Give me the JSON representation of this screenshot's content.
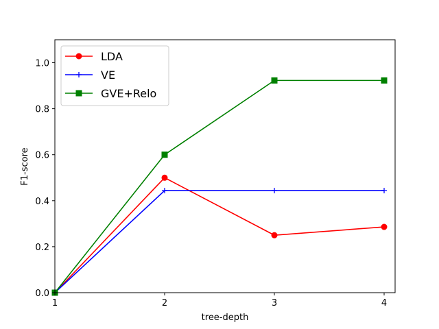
{
  "chart_data": {
    "type": "line",
    "title": "",
    "xlabel": "tree-depth",
    "ylabel": "F1-score",
    "x": [
      1,
      2,
      3,
      4
    ],
    "xticks": [
      1,
      2,
      3,
      4
    ],
    "xlim": [
      1,
      4.1
    ],
    "yticks": [
      0.0,
      0.2,
      0.4,
      0.6,
      0.8,
      1.0
    ],
    "ytick_labels": [
      "0.0",
      "0.2",
      "0.4",
      "0.6",
      "0.8",
      "1.0"
    ],
    "ylim": [
      0,
      1.1
    ],
    "grid": false,
    "legend_position": "top-left",
    "series": [
      {
        "name": "LDA",
        "color": "#ff0000",
        "marker": "circle",
        "values": [
          0.0,
          0.5,
          0.25,
          0.286
        ]
      },
      {
        "name": "VE",
        "color": "#0000ff",
        "marker": "plus",
        "values": [
          0.0,
          0.444,
          0.444,
          0.444
        ]
      },
      {
        "name": "GVE+Relo",
        "color": "#008000",
        "marker": "square",
        "values": [
          0.0,
          0.6,
          0.923,
          0.923
        ]
      }
    ]
  }
}
